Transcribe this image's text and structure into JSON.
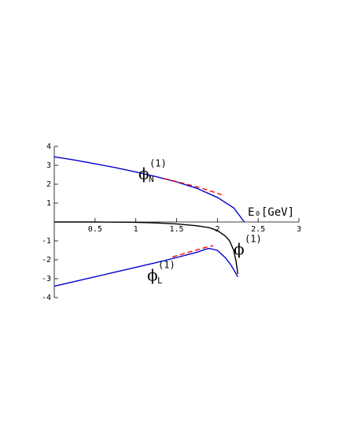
{
  "chart_data": {
    "type": "line",
    "xlabel": "E₀[GeV]",
    "xlim": [
      0,
      3
    ],
    "ylim": [
      -4,
      4
    ],
    "xticks": [
      0.5,
      1,
      1.5,
      2,
      2.5,
      3
    ],
    "yticks": [
      4,
      3,
      2,
      1,
      -1,
      -2,
      -3,
      -4
    ],
    "series": [
      {
        "color": "#0000cc",
        "dash": false,
        "x": [
          0,
          0.25,
          0.5,
          0.75,
          1,
          1.25,
          1.5,
          1.75,
          2,
          2.2,
          2.33
        ],
        "y": [
          3.45,
          3.28,
          3.08,
          2.88,
          2.65,
          2.4,
          2.12,
          1.78,
          1.3,
          0.75,
          0
        ]
      },
      {
        "color": "#0000cc",
        "dash": false,
        "x": [
          0,
          0.25,
          0.5,
          0.75,
          1,
          1.25,
          1.5,
          1.75,
          1.85,
          1.9,
          2,
          2.1,
          2.17,
          2.25
        ],
        "y": [
          -3.4,
          -3.15,
          -2.9,
          -2.65,
          -2.4,
          -2.15,
          -1.88,
          -1.6,
          -1.45,
          -1.4,
          -1.5,
          -1.9,
          -2.3,
          -2.9
        ]
      },
      {
        "color": "#000000",
        "dash": false,
        "x": [
          0,
          0.5,
          1,
          1.25,
          1.5,
          1.75,
          1.9,
          2,
          2.1,
          2.15,
          2.2,
          2.23,
          2.25
        ],
        "y": [
          0,
          0,
          -0.02,
          -0.05,
          -0.1,
          -0.2,
          -0.3,
          -0.45,
          -0.75,
          -1,
          -1.5,
          -2.1,
          -2.75
        ]
      },
      {
        "color": "#ff0000",
        "dash": true,
        "x": [
          1.35,
          1.6,
          1.8,
          2.05
        ],
        "y": [
          2.3,
          2.03,
          1.8,
          1.45
        ]
      },
      {
        "color": "#ff0000",
        "dash": true,
        "x": [
          1.45,
          1.65,
          1.85,
          1.95
        ],
        "y": [
          -1.85,
          -1.6,
          -1.35,
          -1.25
        ]
      }
    ],
    "annotations": [
      {
        "symbol": "ϕ",
        "sup": "(1)",
        "sub": "N"
      },
      {
        "symbol": "ϕ",
        "sup": "(1)",
        "sub": "L"
      },
      {
        "symbol": "ϕ",
        "sup": "(1)"
      }
    ]
  }
}
